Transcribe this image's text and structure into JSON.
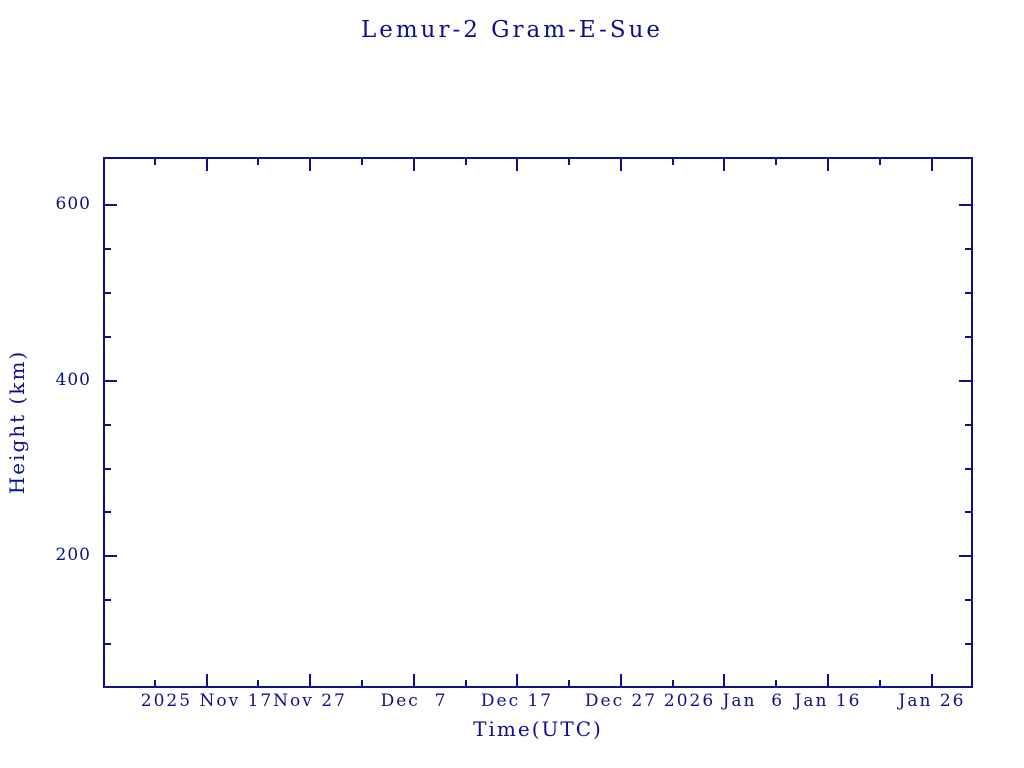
{
  "page": {
    "background": "#ffffff",
    "accent": "#0e0e8e"
  },
  "chart_data": {
    "type": "line",
    "title": "Lemur-2 Gram-E-Sue",
    "xlabel": "Time(UTC)",
    "ylabel": "Height (km)",
    "grid": false,
    "legend": false,
    "series": [],
    "x_axis": {
      "start_date": "2025 Nov 7",
      "end_date": "2026 Jan 30",
      "span_days": 84,
      "major_ticks": [
        {
          "day": 10,
          "label": "2025 Nov 17"
        },
        {
          "day": 20,
          "label": "Nov 27"
        },
        {
          "day": 30,
          "label": "Dec  7"
        },
        {
          "day": 40,
          "label": "Dec 17"
        },
        {
          "day": 50,
          "label": "Dec 27"
        },
        {
          "day": 60,
          "label": "2026 Jan  6"
        },
        {
          "day": 70,
          "label": "Jan 16"
        },
        {
          "day": 80,
          "label": "Jan 26"
        }
      ],
      "minor_tick_days": [
        5,
        15,
        25,
        35,
        45,
        55,
        65,
        75
      ]
    },
    "y_axis": {
      "min": 50,
      "max": 655,
      "major_ticks": [
        {
          "value": 200,
          "label": "200"
        },
        {
          "value": 400,
          "label": "400"
        },
        {
          "value": 600,
          "label": "600"
        }
      ],
      "minor_tick_values": [
        100,
        150,
        250,
        300,
        350,
        450,
        500,
        550
      ]
    }
  }
}
